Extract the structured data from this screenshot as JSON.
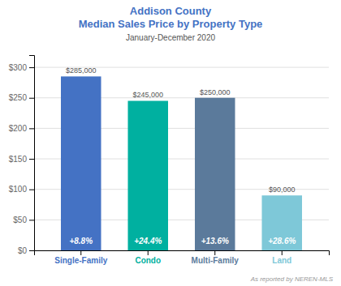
{
  "chart_data": {
    "type": "bar",
    "title": [
      "Addison County",
      "Median Sales Price by Property Type"
    ],
    "subtitle": "January-December 2020",
    "categories": [
      "Single-Family",
      "Condo",
      "Multi-Family",
      "Land"
    ],
    "values": [
      285000,
      245000,
      250000,
      90000
    ],
    "value_labels": [
      "$285,000",
      "$245,000",
      "$250,000",
      "$90,000"
    ],
    "data_labels": true,
    "pct_labels": [
      "+8.8%",
      "+24.4%",
      "+13.6%",
      "+28.6%"
    ],
    "colors": [
      "#4472C4",
      "#00B0A0",
      "#5B7A9B",
      "#7EC8D8"
    ],
    "ylim": [
      0,
      320000
    ],
    "yticks": [
      {
        "value": 0,
        "label": "$0"
      },
      {
        "value": 50000,
        "label": "$50"
      },
      {
        "value": 100000,
        "label": "$100"
      },
      {
        "value": 150000,
        "label": "$150"
      },
      {
        "value": 200000,
        "label": "$200"
      },
      {
        "value": 250000,
        "label": "$250"
      },
      {
        "value": 300000,
        "label": "$300"
      }
    ],
    "grid": true,
    "annotations": [
      "As reported by NEREN-MLS"
    ]
  }
}
